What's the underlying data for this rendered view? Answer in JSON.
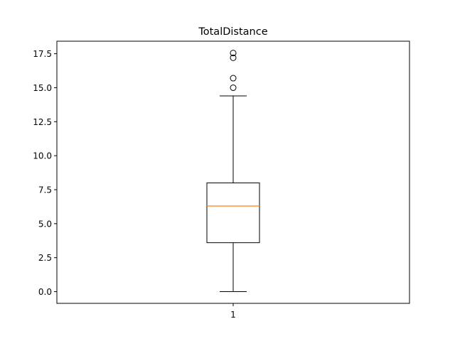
{
  "chart_data": {
    "type": "boxplot",
    "title": "TotalDistance",
    "xlabel": "",
    "ylabel": "",
    "categories": [
      "1"
    ],
    "boxes": [
      {
        "category": "1",
        "whisker_low": 0.0,
        "q1": 3.6,
        "median": 6.3,
        "q3": 8.0,
        "whisker_high": 14.4,
        "outliers": [
          15.0,
          15.7,
          17.2,
          17.55
        ]
      }
    ],
    "ylim": [
      -0.86,
      18.42
    ],
    "yticks": [
      0.0,
      2.5,
      5.0,
      7.5,
      10.0,
      12.5,
      15.0,
      17.5
    ],
    "ytick_labels": [
      "0.0",
      "2.5",
      "5.0",
      "7.5",
      "10.0",
      "12.5",
      "15.0",
      "17.5"
    ],
    "grid": false,
    "colors": {
      "box": "#000000",
      "median": "#ff7f0e",
      "outlier_edge": "#000000"
    }
  }
}
